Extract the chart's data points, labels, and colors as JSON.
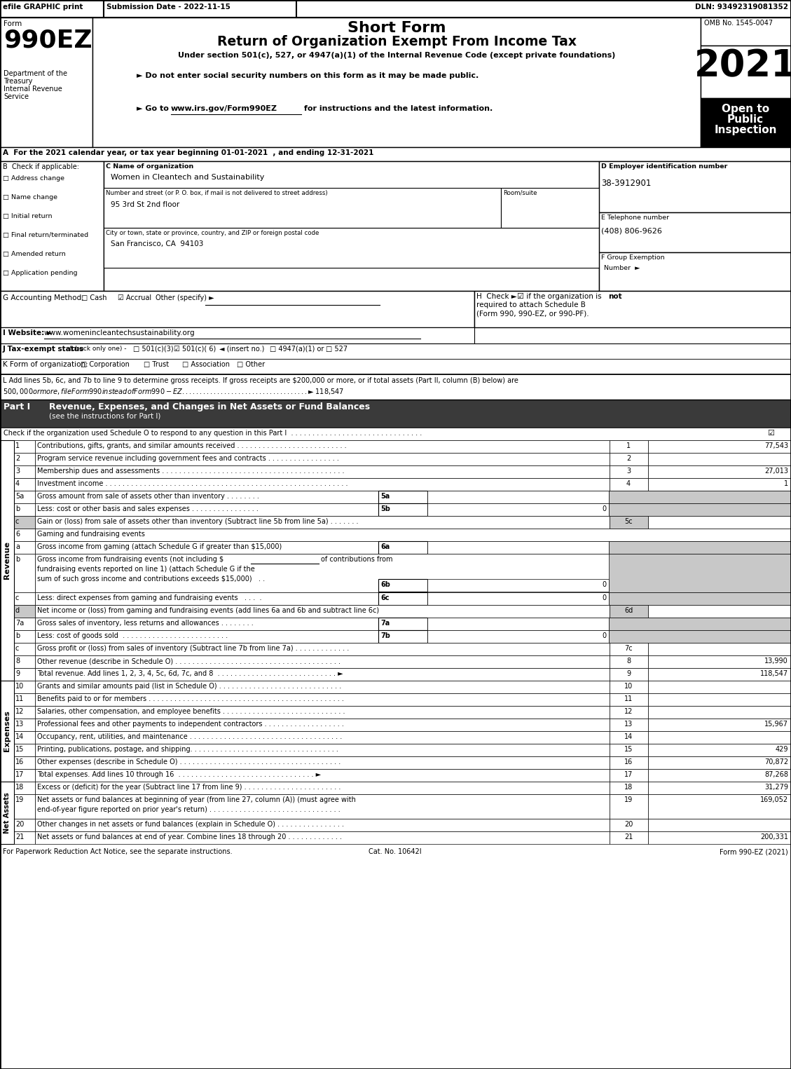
{
  "title_short": "Short Form",
  "title_main": "Return of Organization Exempt From Income Tax",
  "subtitle": "Under section 501(c), 527, or 4947(a)(1) of the Internal Revenue Code (except private foundations)",
  "year": "2021",
  "form_number": "990EZ",
  "omb": "OMB No. 1545-0047",
  "efile_text": "efile GRAPHIC print",
  "submission_date": "Submission Date - 2022-11-15",
  "dln": "DLN: 93492319081352",
  "dept1": "Department of the",
  "dept2": "Treasury",
  "dept3": "Internal Revenue",
  "dept4": "Service",
  "open_to": "Open to\nPublic\nInspection",
  "bullet1": "► Do not enter social security numbers on this form as it may be made public.",
  "website_url": "www.irs.gov/Form990EZ",
  "section_A": "A  For the 2021 calendar year, or tax year beginning 01-01-2021  , and ending 12-31-2021",
  "checkboxes_B": [
    "Address change",
    "Name change",
    "Initial return",
    "Final return/terminated",
    "Amended return",
    "Application pending"
  ],
  "org_name": "Women in Cleantech and Sustainability",
  "street_value": "95 3rd St 2nd floor",
  "city_value": "San Francisco, CA  94103",
  "ein": "38-3912901",
  "phone": "(408) 806-9626",
  "website": "www.womenincleantechsustainability.org",
  "expense_lines": [
    {
      "num": "10",
      "text": "Grants and similar amounts paid (list in Schedule O) . . . . . . . . . . . . . . . . . . . . . . . . . . . . .",
      "line_num": "10",
      "value": ""
    },
    {
      "num": "11",
      "text": "Benefits paid to or for members . . . . . . . . . . . . . . . . . . . . . . . . . . . . . . . . . . . . . . . . . . . . . .",
      "line_num": "11",
      "value": ""
    },
    {
      "num": "12",
      "text": "Salaries, other compensation, and employee benefits . . . . . . . . . . . . . . . . . . . . . . . . . . . . .",
      "line_num": "12",
      "value": ""
    },
    {
      "num": "13",
      "text": "Professional fees and other payments to independent contractors . . . . . . . . . . . . . . . . . . .",
      "line_num": "13",
      "value": "15,967"
    },
    {
      "num": "14",
      "text": "Occupancy, rent, utilities, and maintenance . . . . . . . . . . . . . . . . . . . . . . . . . . . . . . . . . . . .",
      "line_num": "14",
      "value": ""
    },
    {
      "num": "15",
      "text": "Printing, publications, postage, and shipping. . . . . . . . . . . . . . . . . . . . . . . . . . . . . . . . . . .",
      "line_num": "15",
      "value": "429"
    },
    {
      "num": "16",
      "text": "Other expenses (describe in Schedule O) . . . . . . . . . . . . . . . . . . . . . . . . . . . . . . . . . . . . . .",
      "line_num": "16",
      "value": "70,872"
    },
    {
      "num": "17",
      "text": "Total expenses. Add lines 10 through 16  . . . . . . . . . . . . . . . . . . . . . . . . . . . . . . . . ►",
      "line_num": "17",
      "value": "87,268"
    }
  ],
  "net_asset_lines": [
    {
      "num": "18",
      "text": "Excess or (deficit) for the year (Subtract line 17 from line 9) . . . . . . . . . . . . . . . . . . . . . . .",
      "line_num": "18",
      "value": "31,279"
    },
    {
      "num": "19",
      "text": "Net assets or fund balances at beginning of year (from line 27, column (A)) (must agree with",
      "text2": "end-of-year figure reported on prior year's return) . . . . . . . . . . . . . . . . . . . . . . . . . . . . . . .",
      "line_num": "19",
      "value": "169,052"
    },
    {
      "num": "20",
      "text": "Other changes in net assets or fund balances (explain in Schedule O) . . . . . . . . . . . . . . . .",
      "line_num": "20",
      "value": ""
    },
    {
      "num": "21",
      "text": "Net assets or fund balances at end of year. Combine lines 18 through 20 . . . . . . . . . . . . .",
      "line_num": "21",
      "value": "200,331"
    }
  ],
  "footer_left": "For Paperwork Reduction Act Notice, see the separate instructions.",
  "footer_cat": "Cat. No. 10642I",
  "footer_right": "Form 990-EZ (2021)"
}
